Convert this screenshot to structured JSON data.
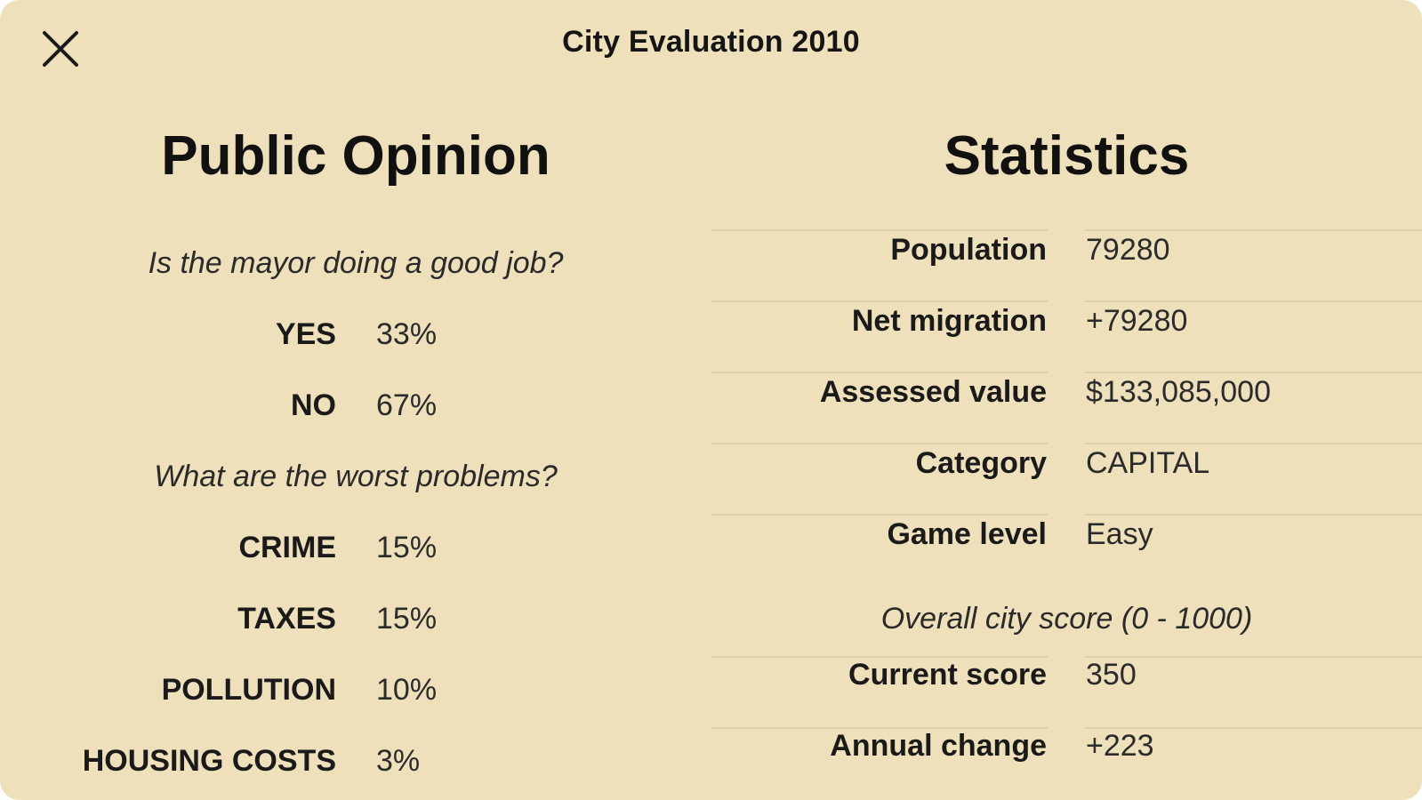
{
  "dialog": {
    "title": "City Evaluation 2010",
    "close_icon": "close-icon"
  },
  "public_opinion": {
    "heading": "Public Opinion",
    "approval_question": "Is the mayor doing a good job?",
    "approval": [
      {
        "label": "YES",
        "value": "33%"
      },
      {
        "label": "NO",
        "value": "67%"
      }
    ],
    "problems_question": "What are the worst problems?",
    "problems": [
      {
        "label": "CRIME",
        "value": "15%"
      },
      {
        "label": "TAXES",
        "value": "15%"
      },
      {
        "label": "POLLUTION",
        "value": "10%"
      },
      {
        "label": "HOUSING COSTS",
        "value": "3%"
      }
    ]
  },
  "statistics": {
    "heading": "Statistics",
    "rows": [
      {
        "label": "Population",
        "value": "79280"
      },
      {
        "label": "Net migration",
        "value": "+79280"
      },
      {
        "label": "Assessed value",
        "value": "$133,085,000"
      },
      {
        "label": "Category",
        "value": "CAPITAL"
      },
      {
        "label": "Game level",
        "value": "Easy"
      }
    ],
    "score_caption": "Overall city score (0 - 1000)",
    "score_rows": [
      {
        "label": "Current score",
        "value": "350"
      },
      {
        "label": "Annual change",
        "value": "+223"
      }
    ]
  }
}
